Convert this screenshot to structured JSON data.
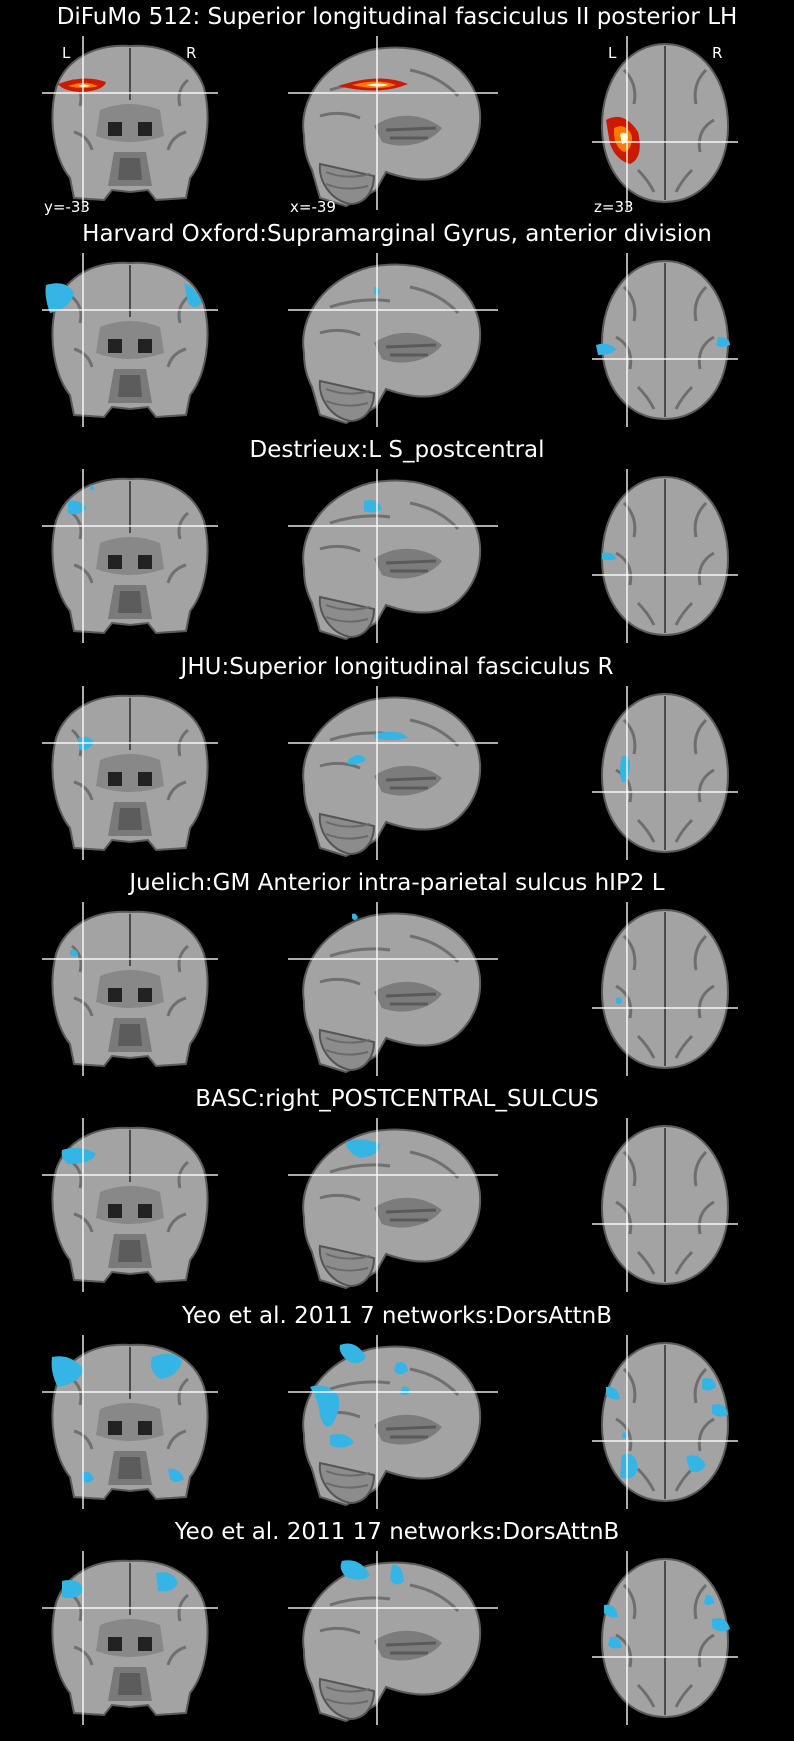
{
  "colors": {
    "background": "#000000",
    "crosshair": "#ffffff",
    "overlay_atlas": "#35b4e6",
    "overlay_difumo_low": "#cc1a00",
    "overlay_difumo_mid": "#ff7a00",
    "overlay_difumo_high": "#ffffd0"
  },
  "orientation": {
    "left": "L",
    "right": "R"
  },
  "coords": {
    "y": "y=-33",
    "x": "x=-39",
    "z": "z=33"
  },
  "panels": [
    {
      "title": "DiFuMo 512: Superior longitudinal fasciculus II posterior LH",
      "overlay": "difumo"
    },
    {
      "title": "Harvard Oxford:Supramarginal Gyrus, anterior division",
      "overlay": "atlas"
    },
    {
      "title": "Destrieux:L S_postcentral",
      "overlay": "atlas"
    },
    {
      "title": "JHU:Superior longitudinal fasciculus R",
      "overlay": "atlas"
    },
    {
      "title": "Juelich:GM Anterior intra-parietal sulcus hIP2 L",
      "overlay": "atlas"
    },
    {
      "title": "BASC:right_POSTCENTRAL_SULCUS",
      "overlay": "atlas"
    },
    {
      "title": "Yeo et al. 2011 7 networks:DorsAttnB",
      "overlay": "atlas"
    },
    {
      "title": "Yeo et al. 2011 17 networks:DorsAttnB",
      "overlay": "atlas"
    }
  ]
}
